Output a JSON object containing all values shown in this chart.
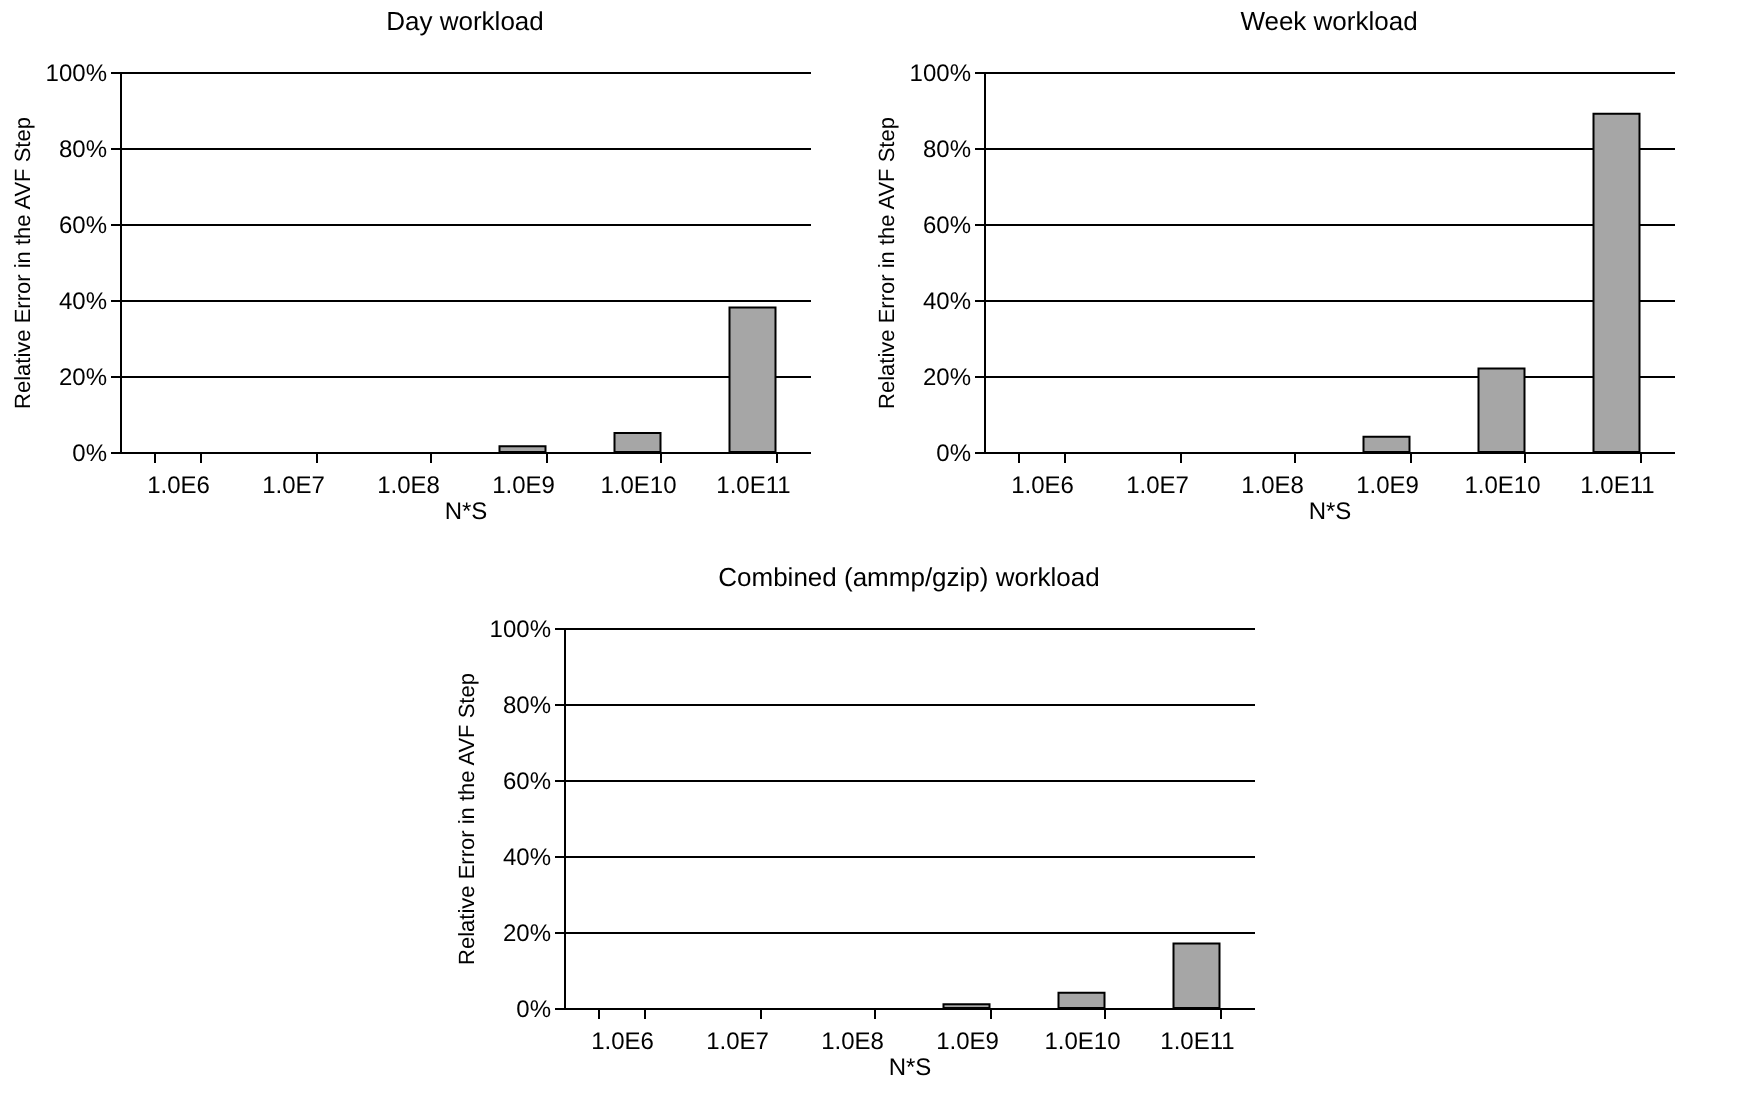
{
  "chart_data": [
    {
      "type": "bar",
      "title": "Day workload",
      "xlabel": "N*S",
      "ylabel": "Relative Error in the AVF Step",
      "categories": [
        "1.0E6",
        "1.0E7",
        "1.0E8",
        "1.0E9",
        "1.0E10",
        "1.0E11"
      ],
      "values": [
        0,
        0,
        0,
        1.5,
        5,
        38
      ],
      "color": "#a6a6a6",
      "ylim": [
        0,
        100
      ],
      "yticks": [
        {
          "value": 0,
          "label": "0%"
        },
        {
          "value": 20,
          "label": "20%"
        },
        {
          "value": 40,
          "label": "40%"
        },
        {
          "value": 60,
          "label": "60%"
        },
        {
          "value": 80,
          "label": "80%"
        },
        {
          "value": 100,
          "label": "100%"
        }
      ],
      "grid": "y"
    },
    {
      "type": "bar",
      "title": "Week workload",
      "xlabel": "N*S",
      "ylabel": "Relative Error in the AVF Step",
      "categories": [
        "1.0E6",
        "1.0E7",
        "1.0E8",
        "1.0E9",
        "1.0E10",
        "1.0E11"
      ],
      "values": [
        0,
        0,
        0,
        4,
        22,
        89
      ],
      "color": "#a6a6a6",
      "ylim": [
        0,
        100
      ],
      "yticks": [
        {
          "value": 0,
          "label": "0%"
        },
        {
          "value": 20,
          "label": "20%"
        },
        {
          "value": 40,
          "label": "40%"
        },
        {
          "value": 60,
          "label": "60%"
        },
        {
          "value": 80,
          "label": "80%"
        },
        {
          "value": 100,
          "label": "100%"
        }
      ],
      "grid": "y"
    },
    {
      "type": "bar",
      "title": "Combined (ammp/gzip) workload",
      "xlabel": "N*S",
      "ylabel": "Relative Error in the AVF Step",
      "categories": [
        "1.0E6",
        "1.0E7",
        "1.0E8",
        "1.0E9",
        "1.0E10",
        "1.0E11"
      ],
      "values": [
        0,
        0,
        0,
        1,
        4,
        17
      ],
      "color": "#a6a6a6",
      "ylim": [
        0,
        100
      ],
      "yticks": [
        {
          "value": 0,
          "label": "0%"
        },
        {
          "value": 20,
          "label": "20%"
        },
        {
          "value": 40,
          "label": "40%"
        },
        {
          "value": 60,
          "label": "60%"
        },
        {
          "value": 80,
          "label": "80%"
        },
        {
          "value": 100,
          "label": "100%"
        }
      ],
      "grid": "y"
    }
  ]
}
